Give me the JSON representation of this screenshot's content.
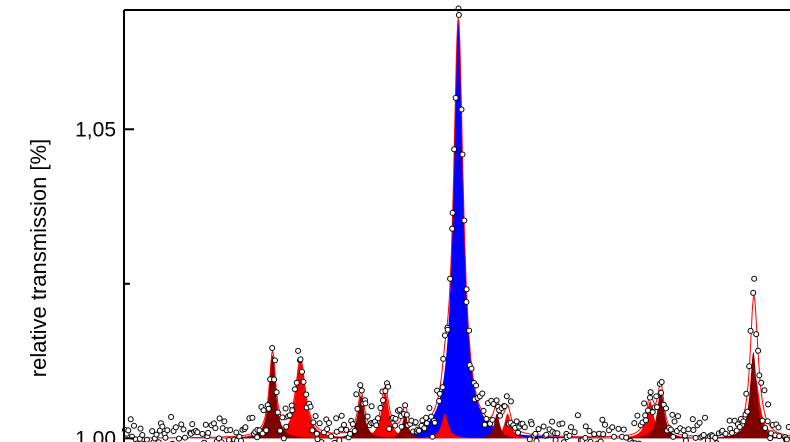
{
  "chart_data": {
    "type": "line",
    "title": "",
    "xlabel": "",
    "ylabel": "relative transmission [%]",
    "xlim": [
      0,
      100
    ],
    "ylim": [
      0.9994,
      1.0693
    ],
    "y_ticks": [
      {
        "value": 1.0,
        "label": "1,00"
      },
      {
        "value": 1.05,
        "label": "1,05"
      }
    ],
    "y_minor_ticks": [
      1.025,
      1.075
    ],
    "grid": false,
    "legend": "none",
    "baseline": 1.0,
    "colors": {
      "center_peak": "#0000ff",
      "side_peaks": "#ff0000",
      "satellite_peaks": "#800000",
      "fit_line": "#ff0000",
      "data_points": "#000000"
    },
    "component_peaks": [
      {
        "name": "",
        "center": 50.2,
        "height": 0.0675,
        "width": 0.9,
        "color": "#0000ff"
      },
      {
        "name": "",
        "center": 26.5,
        "height": 0.0125,
        "width": 0.9,
        "color": "#ff0000"
      },
      {
        "name": "",
        "center": 39.2,
        "height": 0.0075,
        "width": 0.7,
        "color": "#ff0000"
      },
      {
        "name": "",
        "center": 48.2,
        "height": 0.004,
        "width": 0.6,
        "color": "#ff0000"
      },
      {
        "name": "",
        "center": 57.6,
        "height": 0.004,
        "width": 0.6,
        "color": "#ff0000"
      },
      {
        "name": "",
        "center": 79.0,
        "height": 0.006,
        "width": 0.7,
        "color": "#ff0000"
      },
      {
        "name": "",
        "center": 94.8,
        "height": 0.01,
        "width": 0.8,
        "color": "#ff0000"
      },
      {
        "name": "",
        "center": 22.3,
        "height": 0.0135,
        "width": 0.6,
        "color": "#800000"
      },
      {
        "name": "",
        "center": 35.6,
        "height": 0.007,
        "width": 0.6,
        "color": "#800000"
      },
      {
        "name": "",
        "center": 42.2,
        "height": 0.004,
        "width": 0.5,
        "color": "#800000"
      },
      {
        "name": "",
        "center": 56.0,
        "height": 0.004,
        "width": 0.5,
        "color": "#800000"
      },
      {
        "name": "",
        "center": 80.6,
        "height": 0.008,
        "width": 0.6,
        "color": "#800000"
      },
      {
        "name": "",
        "center": 94.5,
        "height": 0.014,
        "width": 0.6,
        "color": "#800000"
      }
    ],
    "scatter_noise": 0.0025,
    "scatter_count": 420
  }
}
